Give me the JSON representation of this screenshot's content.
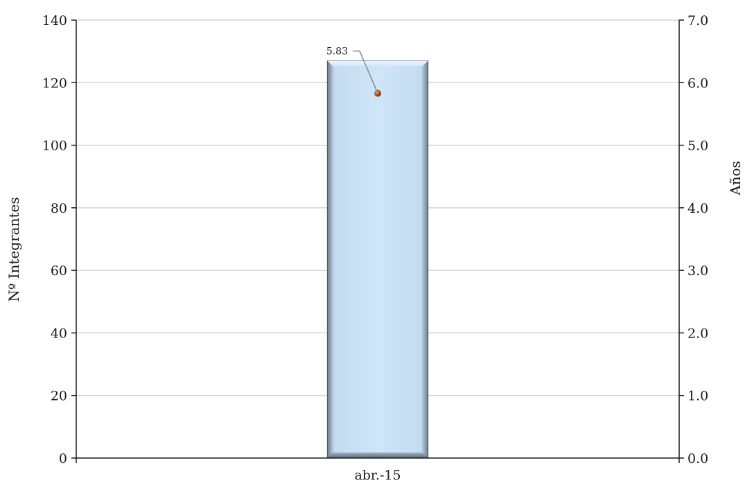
{
  "chart_data": {
    "type": "bar",
    "categories": [
      "abr.-15"
    ],
    "series": [
      {
        "type": "bar",
        "axis": "left",
        "values": [
          127
        ],
        "color": "#cce3f7"
      },
      {
        "type": "line",
        "axis": "right",
        "values": [
          5.83
        ],
        "data_labels": [
          "5.83"
        ],
        "color": "#8b4513"
      }
    ],
    "ylabel_left": "Nº Integrantes",
    "ylabel_right": "Años",
    "ylim_left": [
      0,
      140
    ],
    "ylim_right": [
      0,
      7
    ],
    "yticks_left": [
      "0",
      "20",
      "40",
      "60",
      "80",
      "100",
      "120",
      "140"
    ],
    "yticks_right": [
      "0.0",
      "1.0",
      "2.0",
      "3.0",
      "4.0",
      "5.0",
      "6.0",
      "7.0"
    ],
    "grid": true,
    "legend": "none"
  }
}
